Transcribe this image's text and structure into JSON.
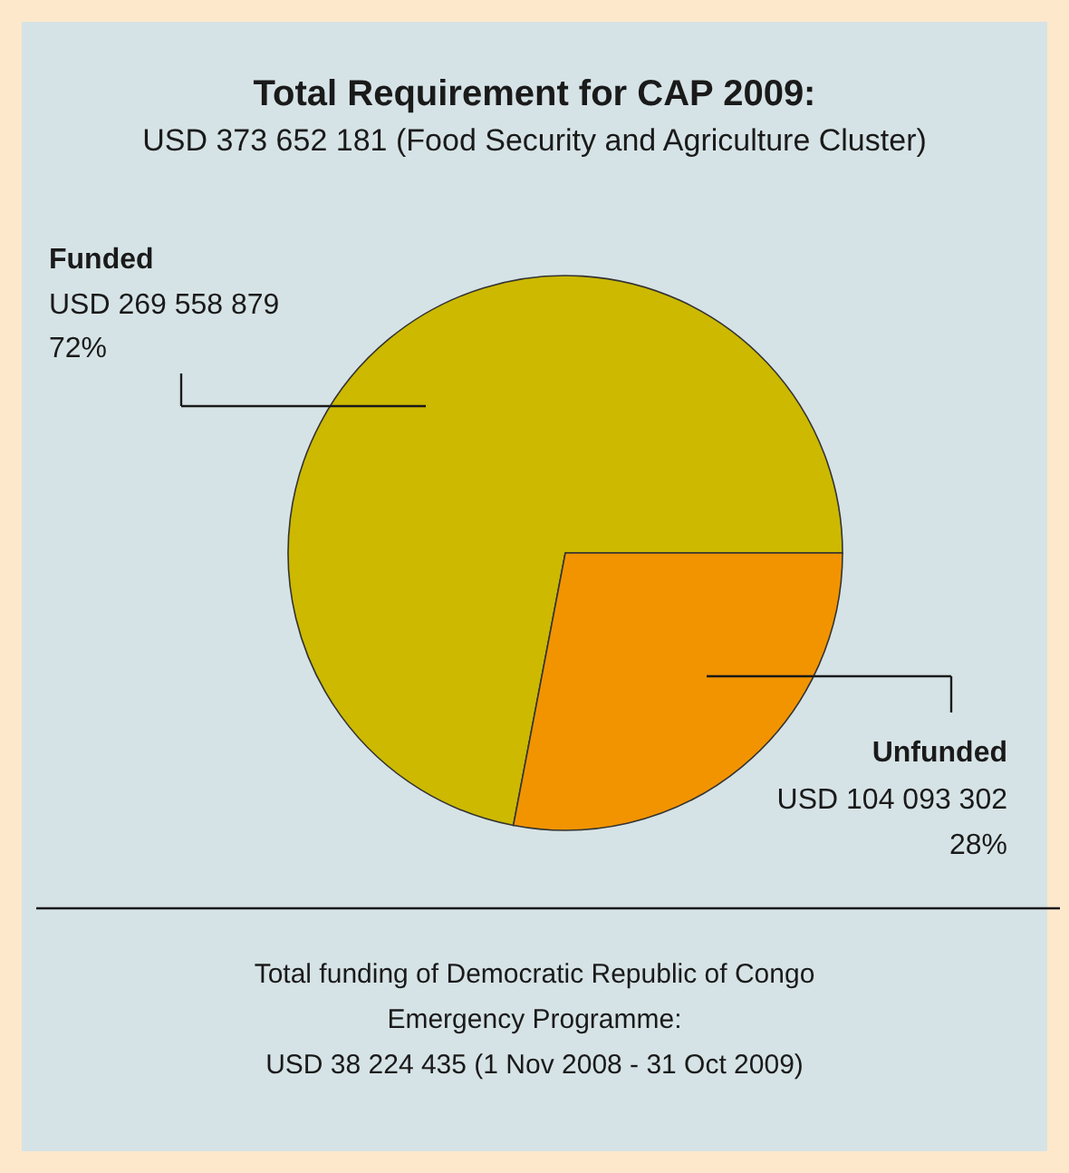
{
  "chart_data": {
    "type": "pie",
    "title": "Total Requirement for CAP 2009:",
    "subtitle": "USD 373 652 181 (Food Security and Agriculture Cluster)",
    "categories": [
      "Funded",
      "Unfunded"
    ],
    "values": [
      72,
      28
    ],
    "colors": [
      "#ccb900",
      "#f29400"
    ],
    "value_labels": [
      [
        "USD 269 558 879",
        "72%"
      ],
      [
        "USD 104 093 302",
        "28%"
      ]
    ],
    "annotations": [
      "Total funding of Democratic Republic of Congo",
      "Emergency Programme:",
      "USD 38 224 435 (1 Nov 2008 - 31 Oct 2009)"
    ]
  }
}
